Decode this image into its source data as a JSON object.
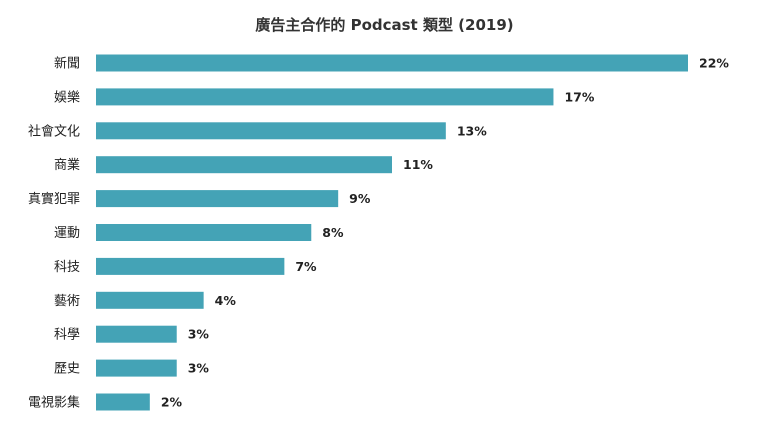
{
  "chart_data": {
    "type": "bar",
    "orientation": "horizontal",
    "title": "廣告主合作的 Podcast 類型  (2019)",
    "categories": [
      "新聞",
      "娛樂",
      "社會文化",
      "商業",
      "真實犯罪",
      "運動",
      "科技",
      "藝術",
      "科學",
      "歷史",
      "電視影集"
    ],
    "values": [
      22,
      17,
      13,
      11,
      9,
      8,
      7,
      4,
      3,
      3,
      2
    ],
    "value_labels": [
      "22%",
      "17%",
      "13%",
      "11%",
      "9%",
      "8%",
      "7%",
      "4%",
      "3%",
      "3%",
      "2%"
    ],
    "unit": "%",
    "xlim": [
      0,
      22
    ],
    "grid": false,
    "legend": "none",
    "bar_color": "#44a3b6"
  }
}
